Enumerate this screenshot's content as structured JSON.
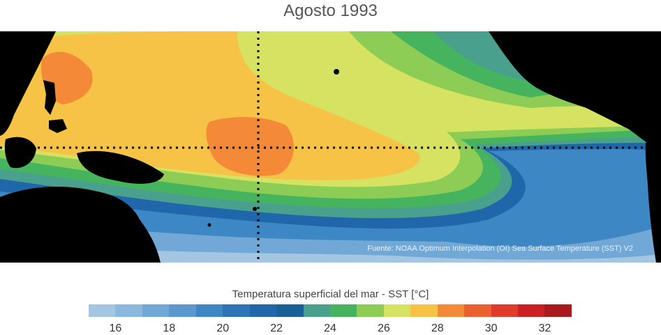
{
  "title": "Agosto 1993",
  "source": "Fuente: NOAA Optimum Interpolation (OI) Sea Surface Temperature (SST) V2",
  "colorbar": {
    "label": "Temperatura superficial del mar - SST  [°C]",
    "colors": [
      "#a3c7e2",
      "#8bb8dd",
      "#72a8d6",
      "#5a98cf",
      "#3e87c5",
      "#2c76b8",
      "#1f66ab",
      "#176198",
      "#49a08c",
      "#46b35e",
      "#8dcd56",
      "#d6e261",
      "#f7c347",
      "#f48a38",
      "#ec5f2e",
      "#e03a2b",
      "#cc1f25",
      "#a81a1e"
    ],
    "ticks": [
      "16",
      "18",
      "20",
      "22",
      "24",
      "26",
      "28",
      "30",
      "32"
    ],
    "min": 15,
    "max": 33.0
  },
  "colors": {
    "land": "#000000",
    "equator": "#000000"
  }
}
